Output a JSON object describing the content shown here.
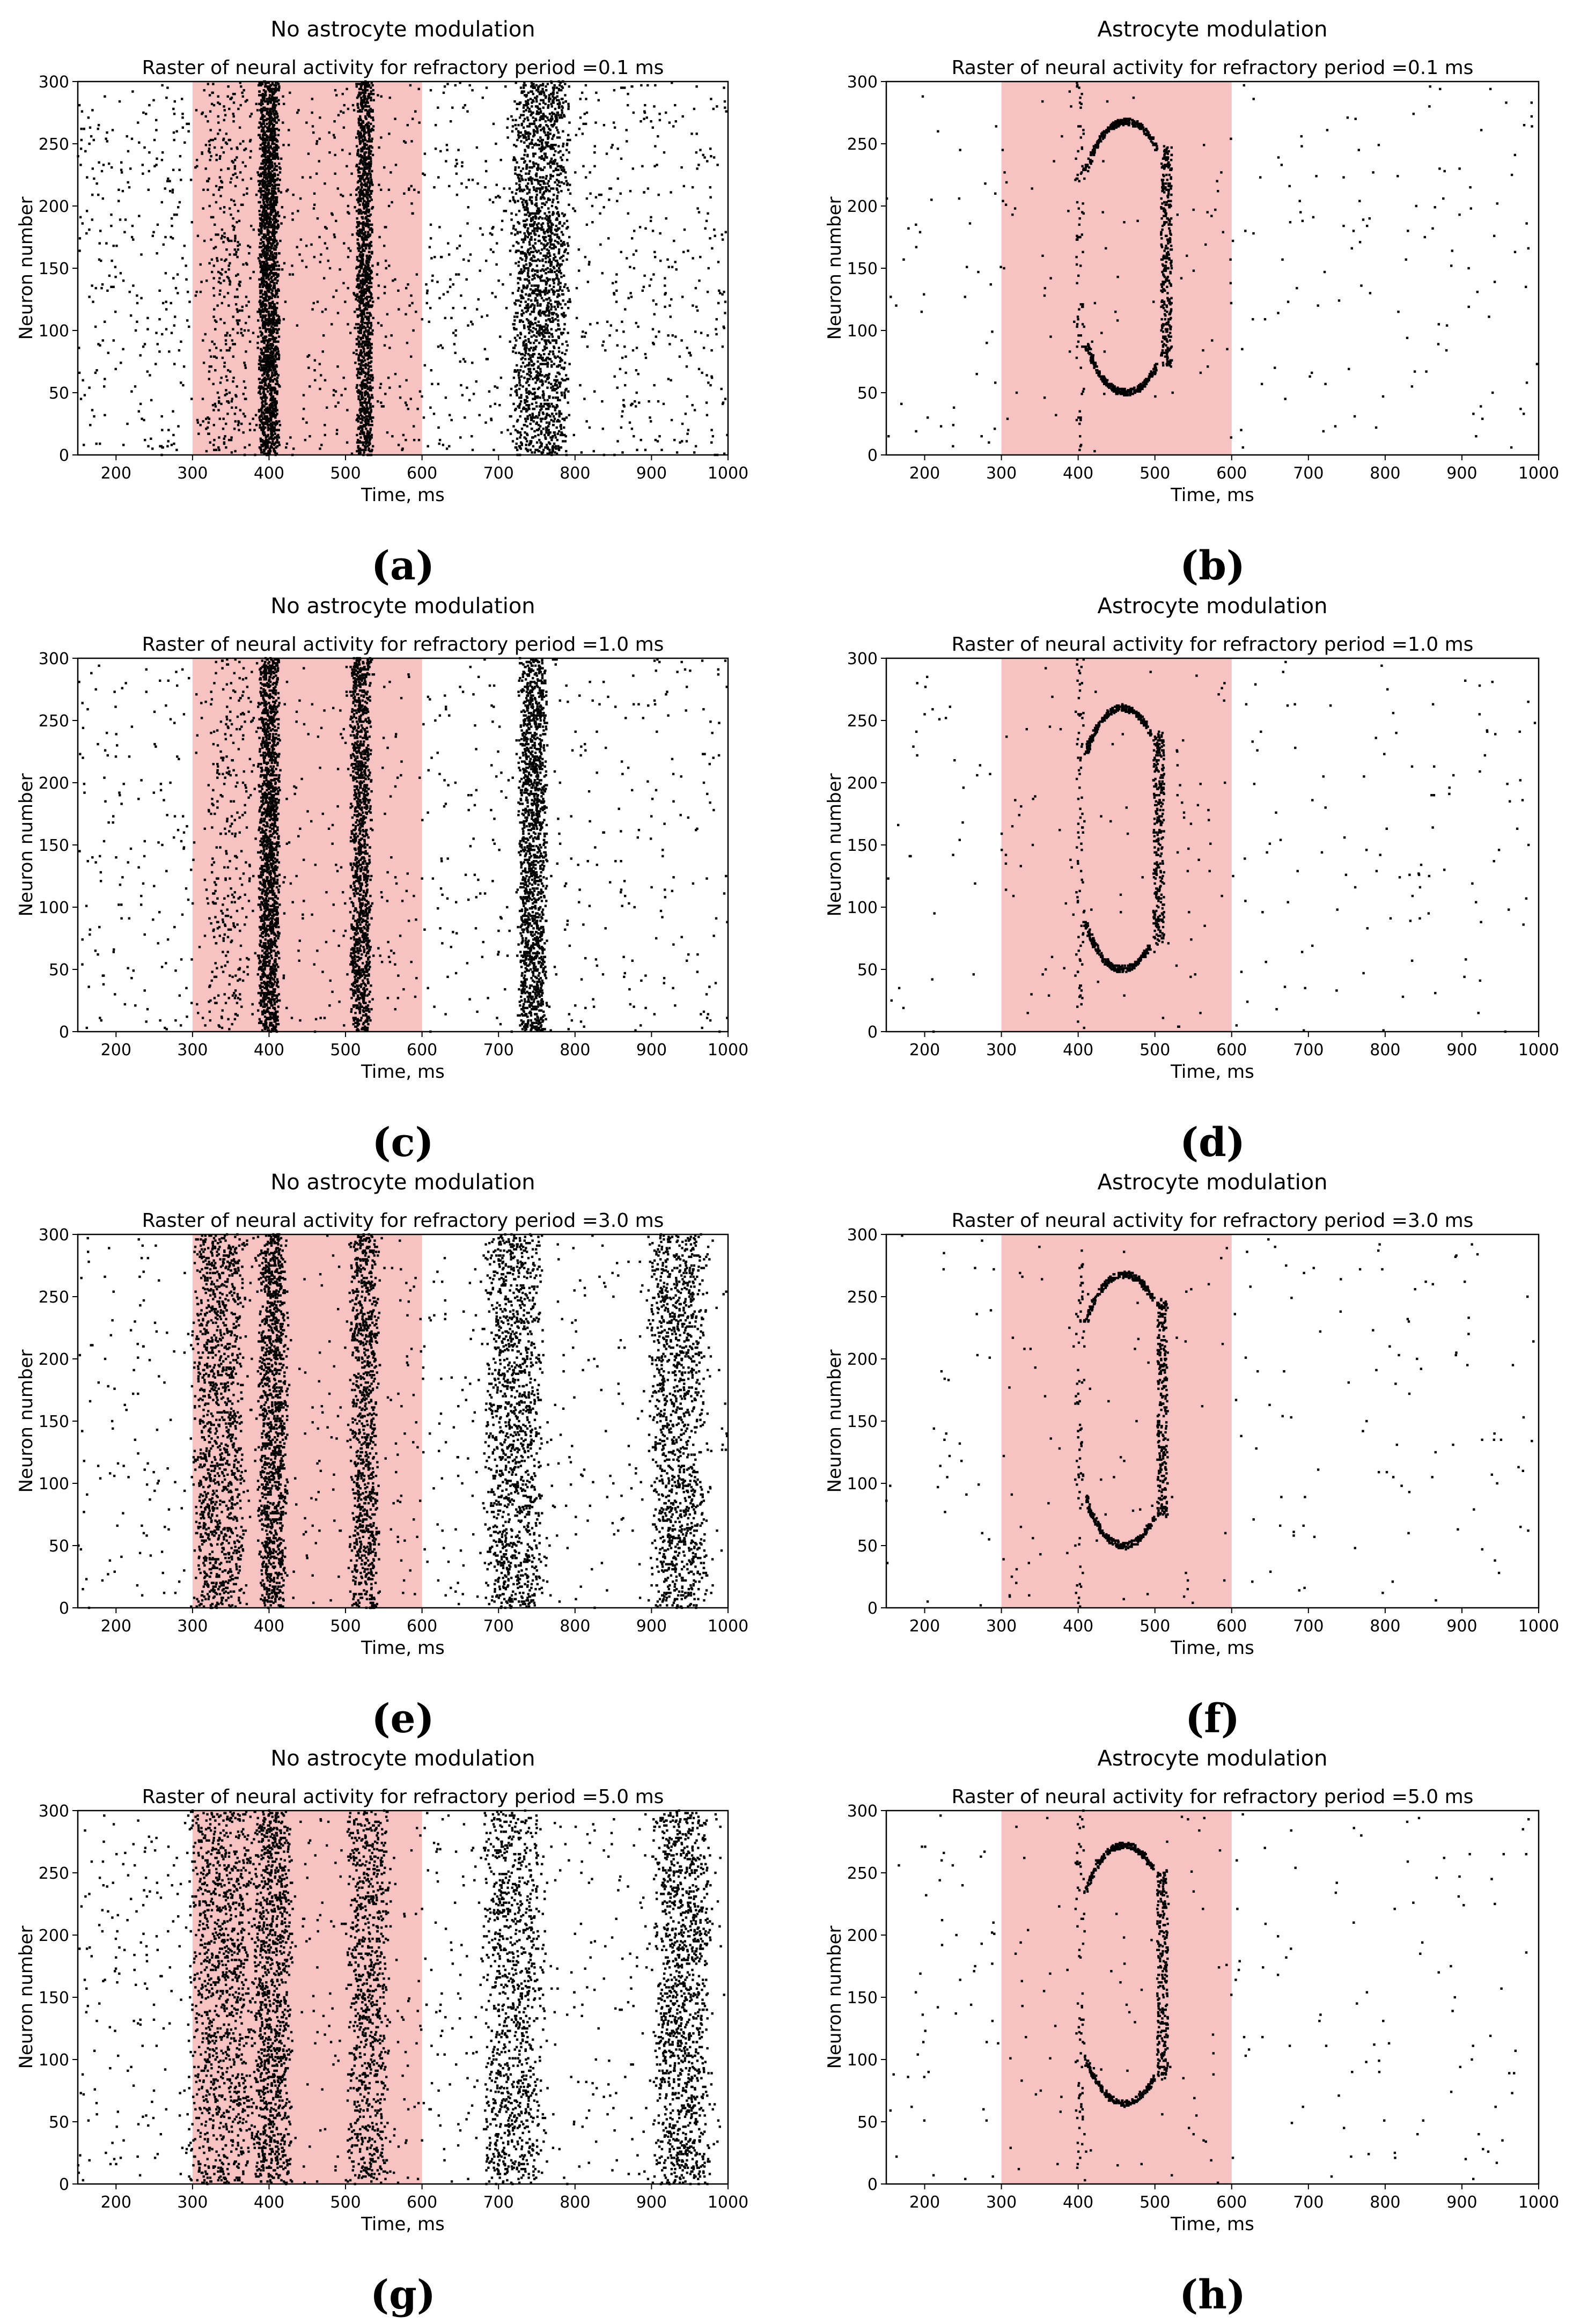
{
  "figure": {
    "captions": [
      "(a)",
      "(b)",
      "(c)",
      "(d)",
      "(e)",
      "(f)",
      "(g)",
      "(h)"
    ]
  },
  "colors": {
    "stimulus_band": "#f7c2c2",
    "spike": "#000000",
    "axis": "#000000",
    "background": "#ffffff"
  },
  "chart_data": [
    {
      "panel": "(a)",
      "type": "scatter",
      "heading": "No astrocyte modulation",
      "title": "Raster of neural activity for refractory period =0.1 ms",
      "xlabel": "Time, ms",
      "ylabel": "Neuron number",
      "xlim": [
        150,
        1000
      ],
      "ylim": [
        0,
        300
      ],
      "xticks": [
        200,
        300,
        400,
        500,
        600,
        700,
        800,
        900,
        1000
      ],
      "yticks": [
        0,
        50,
        100,
        150,
        200,
        250,
        300
      ],
      "shaded_interval": [
        300,
        600
      ],
      "background_spike_count": 1400,
      "bursts": [
        {
          "center": 345,
          "width": 50,
          "neuron_range": [
            0,
            300
          ],
          "spike_count": 300
        },
        {
          "center": 400,
          "width": 22,
          "neuron_range": [
            0,
            300
          ],
          "spike_count": 1900
        },
        {
          "center": 525,
          "width": 18,
          "neuron_range": [
            0,
            300
          ],
          "spike_count": 1300
        },
        {
          "center": 755,
          "width": 60,
          "neuron_range": [
            0,
            300
          ],
          "spike_count": 1800
        }
      ]
    },
    {
      "panel": "(b)",
      "type": "scatter",
      "heading": "Astrocyte modulation",
      "title": "Raster of neural activity for refractory period =0.1 ms",
      "xlabel": "Time, ms",
      "ylabel": "Neuron number",
      "xlim": [
        150,
        1000
      ],
      "ylim": [
        0,
        300
      ],
      "xticks": [
        200,
        300,
        400,
        500,
        600,
        700,
        800,
        900,
        1000
      ],
      "yticks": [
        0,
        50,
        100,
        150,
        200,
        250,
        300
      ],
      "shaded_interval": [
        300,
        600
      ],
      "background_spike_count": 230,
      "bursts": [
        {
          "center": 402,
          "width": 10,
          "neuron_range": [
            0,
            300
          ],
          "spike_count": 80
        }
      ],
      "ring": {
        "t_start": 395,
        "t_end": 530,
        "neuron_range": [
          50,
          268
        ],
        "spike_count": 900
      }
    },
    {
      "panel": "(c)",
      "type": "scatter",
      "heading": "No astrocyte modulation",
      "title": "Raster of neural activity for refractory period =1.0 ms",
      "xlabel": "Time, ms",
      "ylabel": "Neuron number",
      "xlim": [
        150,
        1000
      ],
      "ylim": [
        0,
        300
      ],
      "xticks": [
        200,
        300,
        400,
        500,
        600,
        700,
        800,
        900,
        1000
      ],
      "yticks": [
        0,
        50,
        100,
        150,
        200,
        250,
        300
      ],
      "shaded_interval": [
        300,
        600
      ],
      "background_spike_count": 750,
      "bursts": [
        {
          "center": 345,
          "width": 50,
          "neuron_range": [
            0,
            300
          ],
          "spike_count": 250
        },
        {
          "center": 400,
          "width": 22,
          "neuron_range": [
            0,
            300
          ],
          "spike_count": 1600
        },
        {
          "center": 520,
          "width": 22,
          "neuron_range": [
            0,
            300
          ],
          "spike_count": 1200
        },
        {
          "center": 745,
          "width": 30,
          "neuron_range": [
            0,
            300
          ],
          "spike_count": 1500
        }
      ]
    },
    {
      "panel": "(d)",
      "type": "scatter",
      "heading": "Astrocyte modulation",
      "title": "Raster of neural activity for refractory period =1.0 ms",
      "xlabel": "Time, ms",
      "ylabel": "Neuron number",
      "xlim": [
        150,
        1000
      ],
      "ylim": [
        0,
        300
      ],
      "xticks": [
        200,
        300,
        400,
        500,
        600,
        700,
        800,
        900,
        1000
      ],
      "yticks": [
        0,
        50,
        100,
        150,
        200,
        250,
        300
      ],
      "shaded_interval": [
        300,
        600
      ],
      "background_spike_count": 240,
      "bursts": [
        {
          "center": 402,
          "width": 10,
          "neuron_range": [
            0,
            300
          ],
          "spike_count": 80
        }
      ],
      "ring": {
        "t_start": 395,
        "t_end": 520,
        "neuron_range": [
          50,
          260
        ],
        "spike_count": 800
      }
    },
    {
      "panel": "(e)",
      "type": "scatter",
      "heading": "No astrocyte modulation",
      "title": "Raster of neural activity for refractory period =3.0 ms",
      "xlabel": "Time, ms",
      "ylabel": "Neuron number",
      "xlim": [
        150,
        1000
      ],
      "ylim": [
        0,
        300
      ],
      "xticks": [
        200,
        300,
        400,
        500,
        600,
        700,
        800,
        900,
        1000
      ],
      "yticks": [
        0,
        50,
        100,
        150,
        200,
        250,
        300
      ],
      "shaded_interval": [
        300,
        600
      ],
      "background_spike_count": 700,
      "bursts": [
        {
          "center": 335,
          "width": 55,
          "neuron_range": [
            0,
            300
          ],
          "spike_count": 1200
        },
        {
          "center": 405,
          "width": 30,
          "neuron_range": [
            0,
            300
          ],
          "spike_count": 1200
        },
        {
          "center": 525,
          "width": 30,
          "neuron_range": [
            0,
            300
          ],
          "spike_count": 900
        },
        {
          "center": 720,
          "width": 60,
          "neuron_range": [
            0,
            300
          ],
          "spike_count": 1200
        },
        {
          "center": 935,
          "width": 60,
          "neuron_range": [
            0,
            300
          ],
          "spike_count": 1200
        }
      ]
    },
    {
      "panel": "(f)",
      "type": "scatter",
      "heading": "Astrocyte modulation",
      "title": "Raster of neural activity for refractory period =3.0 ms",
      "xlabel": "Time, ms",
      "ylabel": "Neuron number",
      "xlim": [
        150,
        1000
      ],
      "ylim": [
        0,
        300
      ],
      "xticks": [
        200,
        300,
        400,
        500,
        600,
        700,
        800,
        900,
        1000
      ],
      "yticks": [
        0,
        50,
        100,
        150,
        200,
        250,
        300
      ],
      "shaded_interval": [
        300,
        600
      ],
      "background_spike_count": 200,
      "bursts": [
        {
          "center": 402,
          "width": 10,
          "neuron_range": [
            0,
            300
          ],
          "spike_count": 70
        }
      ],
      "ring": {
        "t_start": 395,
        "t_end": 525,
        "neuron_range": [
          50,
          268
        ],
        "spike_count": 750
      }
    },
    {
      "panel": "(g)",
      "type": "scatter",
      "heading": "No astrocyte modulation",
      "title": "Raster of neural activity for refractory period =5.0 ms",
      "xlabel": "Time, ms",
      "ylabel": "Neuron number",
      "xlim": [
        150,
        1000
      ],
      "ylim": [
        0,
        300
      ],
      "xticks": [
        200,
        300,
        400,
        500,
        600,
        700,
        800,
        900,
        1000
      ],
      "yticks": [
        0,
        50,
        100,
        150,
        200,
        250,
        300
      ],
      "shaded_interval": [
        300,
        600
      ],
      "background_spike_count": 800,
      "bursts": [
        {
          "center": 340,
          "width": 70,
          "neuron_range": [
            0,
            300
          ],
          "spike_count": 1100
        },
        {
          "center": 405,
          "width": 40,
          "neuron_range": [
            0,
            300
          ],
          "spike_count": 1100
        },
        {
          "center": 530,
          "width": 45,
          "neuron_range": [
            0,
            300
          ],
          "spike_count": 800
        },
        {
          "center": 720,
          "width": 65,
          "neuron_range": [
            0,
            300
          ],
          "spike_count": 1000
        },
        {
          "center": 940,
          "width": 60,
          "neuron_range": [
            0,
            300
          ],
          "spike_count": 1200
        }
      ]
    },
    {
      "panel": "(h)",
      "type": "scatter",
      "heading": "Astrocyte modulation",
      "title": "Raster of neural activity for refractory period =5.0 ms",
      "xlabel": "Time, ms",
      "ylabel": "Neuron number",
      "xlim": [
        150,
        1000
      ],
      "ylim": [
        0,
        300
      ],
      "xticks": [
        200,
        300,
        400,
        500,
        600,
        700,
        800,
        900,
        1000
      ],
      "yticks": [
        0,
        50,
        100,
        150,
        200,
        250,
        300
      ],
      "shaded_interval": [
        300,
        600
      ],
      "background_spike_count": 220,
      "bursts": [
        {
          "center": 402,
          "width": 10,
          "neuron_range": [
            0,
            300
          ],
          "spike_count": 70
        }
      ],
      "ring": {
        "t_start": 395,
        "t_end": 525,
        "neuron_range": [
          65,
          272
        ],
        "spike_count": 750
      }
    }
  ]
}
